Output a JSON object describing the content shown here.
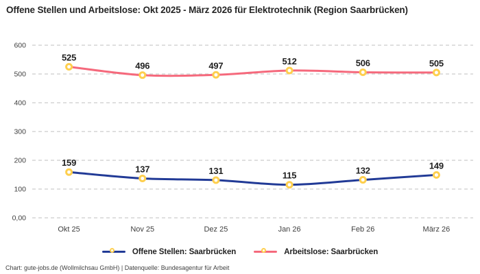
{
  "title": "Offene Stellen und Arbeitslose: Okt 2025 - März 2026 für Elektrotechnik (Region Saarbrücken)",
  "footer_text": "Chart: gute-jobs.de (Wollmilchsau GmbH) | Datenquelle: Bundesagentur für Arbeit",
  "chart_data": {
    "type": "line",
    "title": "Offene Stellen und Arbeitslose: Okt 2025 - März 2026 für Elektrotechnik (Region Saarbrücken)",
    "categories": [
      "Okt 25",
      "Nov 25",
      "Dez 25",
      "Jan 26",
      "Feb 26",
      "März 26"
    ],
    "series": [
      {
        "name": "Offene Stellen: Saarbrücken",
        "color": "#213a96",
        "values": [
          159,
          137,
          131,
          115,
          132,
          149
        ]
      },
      {
        "name": "Arbeitslose: Saarbrücken",
        "color": "#f5697c",
        "values": [
          525,
          496,
          497,
          512,
          506,
          505
        ]
      }
    ],
    "marker_color": "#fecf4e",
    "marker_fill": "#ffffff",
    "grid_color": "#cccccc",
    "yticks": {
      "values": [
        0,
        100,
        200,
        300,
        400,
        500,
        600
      ],
      "labels": [
        "0,00",
        "100",
        "200",
        "300",
        "400",
        "500",
        "600"
      ]
    },
    "ylim": [
      0,
      600
    ],
    "grid": "horizontal-dashed",
    "legend_position": "bottom",
    "line_style": "smooth",
    "data_labels": "above-markers"
  }
}
